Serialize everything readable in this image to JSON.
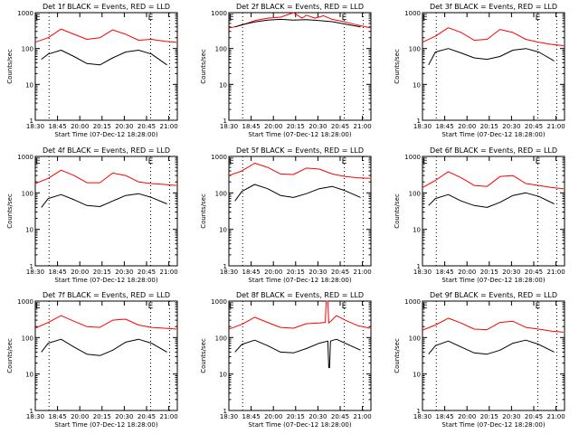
{
  "figure": {
    "background": "#ffffff",
    "axis_color": "#000000",
    "series_colors": {
      "events": "#000000",
      "lld": "#ff0000"
    }
  },
  "chart_data": [
    {
      "type": "line",
      "title": "Det 1f BLACK = Events, RED = LLD",
      "xlabel": "Start Time (07-Dec-12 18:28:00)",
      "ylabel": "Counts/sec",
      "y_scale": "log",
      "ylim": [
        1,
        1000
      ],
      "yticks": [
        "1",
        "10",
        "100",
        "1000"
      ],
      "xlim": [
        "18:30",
        "21:15"
      ],
      "xticks": [
        "18:30",
        "18:45",
        "20:00",
        "20:15",
        "20:30",
        "20:45",
        "21:00"
      ],
      "e_markers": [
        "18:33",
        "20:44"
      ],
      "dotted_vlines": [
        "18:46",
        "20:44",
        "21:06"
      ],
      "series": [
        {
          "color": "#ff0000",
          "x": [
            "18:30",
            "18:45",
            "19:00",
            "19:15",
            "19:30",
            "19:45",
            "20:00",
            "20:15",
            "20:30",
            "20:45",
            "21:00",
            "21:14"
          ],
          "y": [
            150,
            200,
            350,
            250,
            180,
            200,
            330,
            250,
            170,
            180,
            160,
            150
          ]
        },
        {
          "color": "#000000",
          "x": [
            "18:37",
            "18:45",
            "19:00",
            "19:15",
            "19:30",
            "19:45",
            "20:00",
            "20:15",
            "20:30",
            "20:45",
            "21:03"
          ],
          "y": [
            50,
            70,
            90,
            60,
            38,
            35,
            55,
            80,
            90,
            70,
            35
          ]
        }
      ]
    },
    {
      "type": "line",
      "title": "Det 2f BLACK = Events, RED = LLD",
      "xlabel": "Start Time (07-Dec-12 18:28:00)",
      "ylabel": "Counts/sec",
      "y_scale": "log",
      "ylim": [
        1,
        1000
      ],
      "yticks": [
        "1",
        "10",
        "100",
        "1000"
      ],
      "xlim": [
        "18:30",
        "21:15"
      ],
      "xticks": [
        "18:30",
        "18:45",
        "20:00",
        "20:15",
        "20:30",
        "20:45",
        "21:00"
      ],
      "e_markers": [
        "18:33",
        "20:44"
      ],
      "dotted_vlines": [
        "18:46",
        "20:44",
        "21:06"
      ],
      "series": [
        {
          "color": "#ff0000",
          "x": [
            "18:30",
            "18:45",
            "19:00",
            "19:15",
            "19:30",
            "19:45",
            "19:55",
            "20:00",
            "20:10",
            "20:20",
            "20:30",
            "20:45",
            "21:00",
            "21:14"
          ],
          "y": [
            370,
            450,
            600,
            700,
            750,
            1100,
            700,
            850,
            700,
            820,
            650,
            550,
            450,
            380
          ]
        },
        {
          "color": "#000000",
          "x": [
            "18:37",
            "18:45",
            "19:00",
            "19:15",
            "19:30",
            "19:45",
            "20:00",
            "20:15",
            "20:30",
            "20:45",
            "21:03"
          ],
          "y": [
            400,
            460,
            550,
            620,
            650,
            620,
            640,
            600,
            560,
            480,
            400
          ]
        }
      ]
    },
    {
      "type": "line",
      "title": "Det 3f BLACK = Events, RED = LLD",
      "xlabel": "Start Time (07-Dec-12 18:28:00)",
      "ylabel": "Counts/sec",
      "y_scale": "log",
      "ylim": [
        1,
        1000
      ],
      "yticks": [
        "1",
        "10",
        "100",
        "1000"
      ],
      "xlim": [
        "18:30",
        "21:15"
      ],
      "xticks": [
        "18:30",
        "18:45",
        "20:00",
        "20:15",
        "20:30",
        "20:45",
        "21:00"
      ],
      "e_markers": [
        "18:33",
        "20:44"
      ],
      "dotted_vlines": [
        "18:46",
        "20:44",
        "21:06"
      ],
      "series": [
        {
          "color": "#ff0000",
          "x": [
            "18:30",
            "18:45",
            "19:00",
            "19:15",
            "19:30",
            "19:45",
            "20:00",
            "20:15",
            "20:30",
            "20:45",
            "21:00",
            "21:14"
          ],
          "y": [
            150,
            220,
            380,
            280,
            170,
            180,
            340,
            280,
            180,
            150,
            130,
            120
          ]
        },
        {
          "color": "#000000",
          "x": [
            "18:37",
            "18:45",
            "19:00",
            "19:15",
            "19:30",
            "19:45",
            "20:00",
            "20:15",
            "20:30",
            "20:45",
            "21:03"
          ],
          "y": [
            35,
            80,
            100,
            75,
            55,
            50,
            60,
            90,
            100,
            80,
            45
          ]
        }
      ]
    },
    {
      "type": "line",
      "title": "Det 4f BLACK = Events, RED = LLD",
      "xlabel": "Start Time (07-Dec-12 18:28:00)",
      "ylabel": "Counts/sec",
      "y_scale": "log",
      "ylim": [
        1,
        1000
      ],
      "yticks": [
        "1",
        "10",
        "100",
        "1000"
      ],
      "xlim": [
        "18:30",
        "21:15"
      ],
      "xticks": [
        "18:30",
        "18:45",
        "20:00",
        "20:15",
        "20:30",
        "20:45",
        "21:00"
      ],
      "e_markers": [
        "18:33",
        "20:44"
      ],
      "dotted_vlines": [
        "18:46",
        "20:44",
        "21:06"
      ],
      "series": [
        {
          "color": "#ff0000",
          "x": [
            "18:30",
            "18:45",
            "19:00",
            "19:15",
            "19:30",
            "19:45",
            "20:00",
            "20:15",
            "20:30",
            "20:45",
            "21:00",
            "21:14"
          ],
          "y": [
            180,
            250,
            420,
            300,
            190,
            190,
            350,
            300,
            200,
            180,
            170,
            160
          ]
        },
        {
          "color": "#000000",
          "x": [
            "18:37",
            "18:45",
            "19:00",
            "19:15",
            "19:30",
            "19:45",
            "20:00",
            "20:15",
            "20:30",
            "20:45",
            "21:03"
          ],
          "y": [
            40,
            70,
            90,
            65,
            45,
            42,
            60,
            85,
            95,
            75,
            50
          ]
        }
      ]
    },
    {
      "type": "line",
      "title": "Det 5f BLACK = Events, RED = LLD",
      "xlabel": "Start Time (07-Dec-12 18:28:00)",
      "ylabel": "Counts/sec",
      "y_scale": "log",
      "ylim": [
        1,
        1000
      ],
      "yticks": [
        "1",
        "10",
        "100",
        "1000"
      ],
      "xlim": [
        "18:30",
        "21:15"
      ],
      "xticks": [
        "18:30",
        "18:45",
        "20:00",
        "20:15",
        "20:30",
        "20:45",
        "21:00"
      ],
      "e_markers": [
        "18:33",
        "20:44"
      ],
      "dotted_vlines": [
        "18:46",
        "20:44",
        "21:06"
      ],
      "series": [
        {
          "color": "#ff0000",
          "x": [
            "18:30",
            "18:45",
            "19:00",
            "19:15",
            "19:30",
            "19:45",
            "20:00",
            "20:15",
            "20:30",
            "20:45",
            "21:00",
            "21:14"
          ],
          "y": [
            300,
            400,
            650,
            500,
            330,
            320,
            480,
            450,
            330,
            280,
            260,
            250
          ]
        },
        {
          "color": "#000000",
          "x": [
            "18:37",
            "18:45",
            "19:00",
            "19:15",
            "19:30",
            "19:45",
            "20:00",
            "20:15",
            "20:30",
            "20:45",
            "21:03"
          ],
          "y": [
            60,
            110,
            170,
            130,
            85,
            75,
            95,
            130,
            150,
            115,
            75
          ]
        }
      ]
    },
    {
      "type": "line",
      "title": "Det 6f BLACK = Events, RED = LLD",
      "xlabel": "Start Time (07-Dec-12 18:28:00)",
      "ylabel": "Counts/sec",
      "y_scale": "log",
      "ylim": [
        1,
        1000
      ],
      "yticks": [
        "1",
        "10",
        "100",
        "1000"
      ],
      "xlim": [
        "18:30",
        "21:15"
      ],
      "xticks": [
        "18:30",
        "18:45",
        "20:00",
        "20:15",
        "20:30",
        "20:45",
        "21:00"
      ],
      "e_markers": [
        "18:33",
        "20:44"
      ],
      "dotted_vlines": [
        "18:46",
        "20:44",
        "21:06"
      ],
      "series": [
        {
          "color": "#ff0000",
          "x": [
            "18:30",
            "18:45",
            "19:00",
            "19:15",
            "19:30",
            "19:45",
            "20:00",
            "20:15",
            "20:30",
            "20:45",
            "21:00",
            "21:14"
          ],
          "y": [
            140,
            220,
            380,
            260,
            160,
            150,
            280,
            300,
            180,
            160,
            140,
            130
          ]
        },
        {
          "color": "#000000",
          "x": [
            "18:37",
            "18:45",
            "19:00",
            "19:15",
            "19:30",
            "19:45",
            "20:00",
            "20:15",
            "20:30",
            "20:45",
            "21:03"
          ],
          "y": [
            45,
            70,
            90,
            60,
            45,
            40,
            55,
            85,
            100,
            80,
            50
          ]
        }
      ]
    },
    {
      "type": "line",
      "title": "Det 7f BLACK = Events, RED = LLD",
      "xlabel": "Start Time (07-Dec-12 18:28:00)",
      "ylabel": "Counts/sec",
      "y_scale": "log",
      "ylim": [
        1,
        1000
      ],
      "yticks": [
        "1",
        "10",
        "100",
        "1000"
      ],
      "xlim": [
        "18:30",
        "21:15"
      ],
      "xticks": [
        "18:30",
        "18:45",
        "20:00",
        "20:15",
        "20:30",
        "20:45",
        "21:00"
      ],
      "e_markers": [
        "18:33",
        "20:44"
      ],
      "dotted_vlines": [
        "18:46",
        "20:44",
        "21:06"
      ],
      "series": [
        {
          "color": "#ff0000",
          "x": [
            "18:30",
            "18:45",
            "19:00",
            "19:15",
            "19:30",
            "19:45",
            "20:00",
            "20:15",
            "20:30",
            "20:45",
            "21:00",
            "21:14"
          ],
          "y": [
            180,
            260,
            400,
            280,
            200,
            190,
            300,
            320,
            220,
            190,
            180,
            170
          ]
        },
        {
          "color": "#000000",
          "x": [
            "18:37",
            "18:45",
            "19:00",
            "19:15",
            "19:30",
            "19:45",
            "20:00",
            "20:15",
            "20:30",
            "20:45",
            "21:03"
          ],
          "y": [
            40,
            70,
            90,
            55,
            35,
            32,
            45,
            75,
            90,
            70,
            40
          ]
        }
      ]
    },
    {
      "type": "line",
      "title": "Det 8f BLACK = Events, RED = LLD",
      "xlabel": "Start Time (07-Dec-12 18:28:00)",
      "ylabel": "Counts/sec",
      "y_scale": "log",
      "ylim": [
        1,
        1000
      ],
      "yticks": [
        "1",
        "10",
        "100",
        "1000"
      ],
      "xlim": [
        "18:30",
        "21:15"
      ],
      "xticks": [
        "18:30",
        "18:45",
        "20:00",
        "20:15",
        "20:30",
        "20:45",
        "21:00"
      ],
      "e_markers": [
        "18:33",
        "20:44"
      ],
      "dotted_vlines": [
        "18:46",
        "20:44",
        "21:06"
      ],
      "series": [
        {
          "color": "#ff0000",
          "x": [
            "18:30",
            "18:45",
            "19:00",
            "19:15",
            "19:30",
            "19:45",
            "20:00",
            "20:15",
            "20:22",
            "20:23",
            "20:25",
            "20:26",
            "20:35",
            "20:45",
            "21:00",
            "21:14"
          ],
          "y": [
            170,
            230,
            360,
            260,
            190,
            180,
            240,
            250,
            260,
            1000,
            1000,
            250,
            400,
            300,
            210,
            180
          ]
        },
        {
          "color": "#000000",
          "x": [
            "18:37",
            "18:45",
            "19:00",
            "19:15",
            "19:30",
            "19:45",
            "20:00",
            "20:15",
            "20:25",
            "20:26",
            "20:27",
            "20:28",
            "20:35",
            "20:45",
            "21:03"
          ],
          "y": [
            40,
            65,
            85,
            60,
            40,
            38,
            50,
            70,
            80,
            15,
            15,
            80,
            90,
            70,
            45
          ]
        }
      ]
    },
    {
      "type": "line",
      "title": "Det 9f BLACK = Events, RED = LLD",
      "xlabel": "Start Time (07-Dec-12 18:28:00)",
      "ylabel": "Counts/sec",
      "y_scale": "log",
      "ylim": [
        1,
        1000
      ],
      "yticks": [
        "1",
        "10",
        "100",
        "1000"
      ],
      "xlim": [
        "18:30",
        "21:15"
      ],
      "xticks": [
        "18:30",
        "18:45",
        "20:00",
        "20:15",
        "20:30",
        "20:45",
        "21:00"
      ],
      "e_markers": [
        "18:33",
        "20:44"
      ],
      "dotted_vlines": [
        "18:46",
        "20:44",
        "21:06"
      ],
      "series": [
        {
          "color": "#ff0000",
          "x": [
            "18:30",
            "18:45",
            "19:00",
            "19:15",
            "19:30",
            "19:45",
            "20:00",
            "20:15",
            "20:30",
            "20:45",
            "21:00",
            "21:14"
          ],
          "y": [
            160,
            220,
            340,
            250,
            170,
            165,
            260,
            280,
            190,
            170,
            150,
            140
          ]
        },
        {
          "color": "#000000",
          "x": [
            "18:37",
            "18:45",
            "19:00",
            "19:15",
            "19:30",
            "19:45",
            "20:00",
            "20:15",
            "20:30",
            "20:45",
            "21:03"
          ],
          "y": [
            35,
            60,
            80,
            55,
            38,
            35,
            45,
            70,
            85,
            65,
            40
          ]
        }
      ]
    }
  ]
}
